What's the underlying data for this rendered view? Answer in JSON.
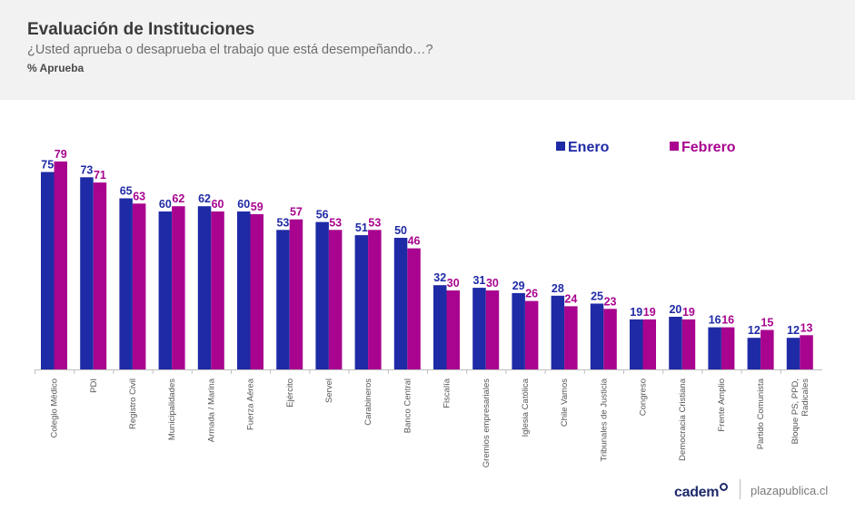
{
  "header": {
    "title": "Evaluación de Instituciones",
    "subtitle": "¿Usted aprueba o desaprueba el trabajo que está desempeñando…?",
    "unit": "% Aprueba"
  },
  "footer": {
    "brand": "cadem",
    "site": "plazapublica.cl"
  },
  "colors": {
    "enero": "#1f2aa6",
    "febrero": "#a8048f",
    "axis": "#bfbfbf",
    "tick_label": "#555555"
  },
  "chart_data": {
    "type": "bar",
    "title": "Evaluación de Instituciones",
    "ylabel": "% Aprueba",
    "ylim": [
      0,
      80
    ],
    "legend": "top-right",
    "categories": [
      "Colegio Médico",
      "PDI",
      "Registro Civil",
      "Municipalidades",
      "Armada / Marina",
      "Fuerza Aérea",
      "Ejército",
      "Servel",
      "Carabineros",
      "Banco Central",
      "Fiscalía",
      "Gremios empresariales",
      "Iglesia Católica",
      "Chile Vamos",
      "Tribunales de Justicia",
      "Congreso",
      "Democracia Cristiana",
      "Frente Amplio",
      "Partido Comunista",
      "Bloque PS, PPD, Radicales"
    ],
    "series": [
      {
        "name": "Enero",
        "values": [
          75,
          73,
          65,
          60,
          62,
          60,
          53,
          56,
          51,
          50,
          32,
          31,
          29,
          28,
          25,
          19,
          20,
          16,
          12,
          12
        ]
      },
      {
        "name": "Febrero",
        "values": [
          79,
          71,
          63,
          62,
          60,
          59,
          57,
          53,
          53,
          46,
          30,
          30,
          26,
          24,
          23,
          19,
          19,
          16,
          15,
          13
        ]
      }
    ]
  }
}
